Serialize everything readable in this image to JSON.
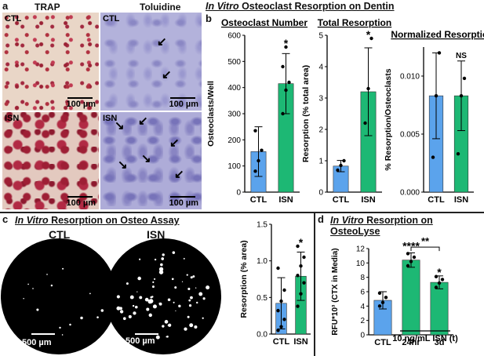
{
  "panel_a": {
    "letter": "a",
    "col_trap": "TRAP",
    "col_toluidine": "Toluidine",
    "row_ctl": "CTL",
    "row_isn": "ISN",
    "scale": "100 µm"
  },
  "title_ab": "In Vitro Osteoclast Resorption on Dentin",
  "title_ab_italic": "In Vitro",
  "title_ab_rest": " Osteoclast Resorption on Dentin",
  "panel_b": {
    "letter": "b"
  },
  "panel_c": {
    "letter": "c",
    "title_italic": "In Vitro",
    "title_rest": " Resorption on Osteo Assay",
    "ctl": "CTL",
    "isn": "ISN",
    "scale": "500 µm"
  },
  "panel_d": {
    "letter": "d",
    "title_italic": "In Vitro",
    "title_rest": " Resorption on OsteoLyse",
    "group_label": "10 ng/mL ISN (t)"
  },
  "colors": {
    "ctl": "#5ba3ec",
    "isn": "#1db874"
  },
  "chart_data": [
    {
      "id": "b1",
      "type": "bar",
      "title": "Osteoclast Number",
      "ylabel": "Osteoclasts/Well",
      "categories": [
        "CTL",
        "ISN"
      ],
      "values": [
        155,
        415
      ],
      "errors": [
        95,
        115
      ],
      "points": [
        [
          80,
          120,
          160,
          235
        ],
        [
          300,
          390,
          420,
          480,
          555
        ]
      ],
      "annotations": [
        "",
        "*"
      ],
      "ylim": [
        0,
        600
      ],
      "yticks": [
        "0",
        "100",
        "200",
        "300",
        "400",
        "500",
        "600"
      ]
    },
    {
      "id": "b2",
      "type": "bar",
      "title": "Total Resorption",
      "ylabel": "Resorption (% total area)",
      "categories": [
        "CTL",
        "ISN"
      ],
      "values": [
        0.83,
        3.2
      ],
      "errors": [
        0.18,
        1.4
      ],
      "points": [
        [
          0.7,
          0.85,
          1.0
        ],
        [
          2.2,
          3.3,
          4.9
        ]
      ],
      "annotations": [
        "",
        "*"
      ],
      "ylim": [
        0,
        5
      ],
      "yticks": [
        "0",
        "1",
        "2",
        "3",
        "4",
        "5"
      ]
    },
    {
      "id": "b3",
      "type": "bar",
      "title": "Normalized Resorption",
      "ylabel": "% Resorption/Osteoclasts",
      "categories": [
        "CTL",
        "ISN"
      ],
      "values": [
        0.0083,
        0.0083
      ],
      "errors": [
        0.0037,
        0.003
      ],
      "points": [
        [
          0.003,
          0.0083,
          0.012
        ],
        [
          0.0033,
          0.0083,
          0.0098
        ]
      ],
      "annotations": [
        "",
        "NS"
      ],
      "ylim": [
        0,
        0.0125
      ],
      "yticks": [
        "0.000",
        "0.005",
        "0.010"
      ],
      "ytick_values": [
        0,
        0.005,
        0.01
      ]
    },
    {
      "id": "c",
      "type": "bar",
      "ylabel": "Resorption (% area)",
      "categories": [
        "CTL",
        "ISN"
      ],
      "values": [
        0.42,
        0.79
      ],
      "errors": [
        0.35,
        0.33
      ],
      "points": [
        [
          0.05,
          0.1,
          0.2,
          0.32,
          0.45,
          0.6,
          0.9
        ],
        [
          0.38,
          0.55,
          0.7,
          0.8,
          0.93,
          1.05,
          1.2
        ]
      ],
      "annotations": [
        "",
        "*"
      ],
      "ylim": [
        0,
        1.5
      ],
      "yticks": [
        "0.0",
        "0.5",
        "1.0",
        "1.5"
      ]
    },
    {
      "id": "d",
      "type": "bar",
      "ylabel": "RFU*10³ (CTX in Media)",
      "categories": [
        "CTL",
        "24hr",
        "3d"
      ],
      "values": [
        4.8,
        10.4,
        7.3
      ],
      "errors": [
        1.2,
        1.0,
        0.9
      ],
      "points": [
        [
          4.0,
          4.5,
          5.2,
          5.8
        ],
        [
          9.6,
          10.2,
          10.8,
          11.3
        ],
        [
          6.6,
          7.2,
          7.7,
          8.1
        ]
      ],
      "annotations": [
        "",
        "****",
        "*"
      ],
      "bracket": "**",
      "ylim": [
        0,
        12
      ],
      "yticks": [
        "0",
        "2",
        "4",
        "6",
        "8",
        "10",
        "12"
      ]
    }
  ]
}
